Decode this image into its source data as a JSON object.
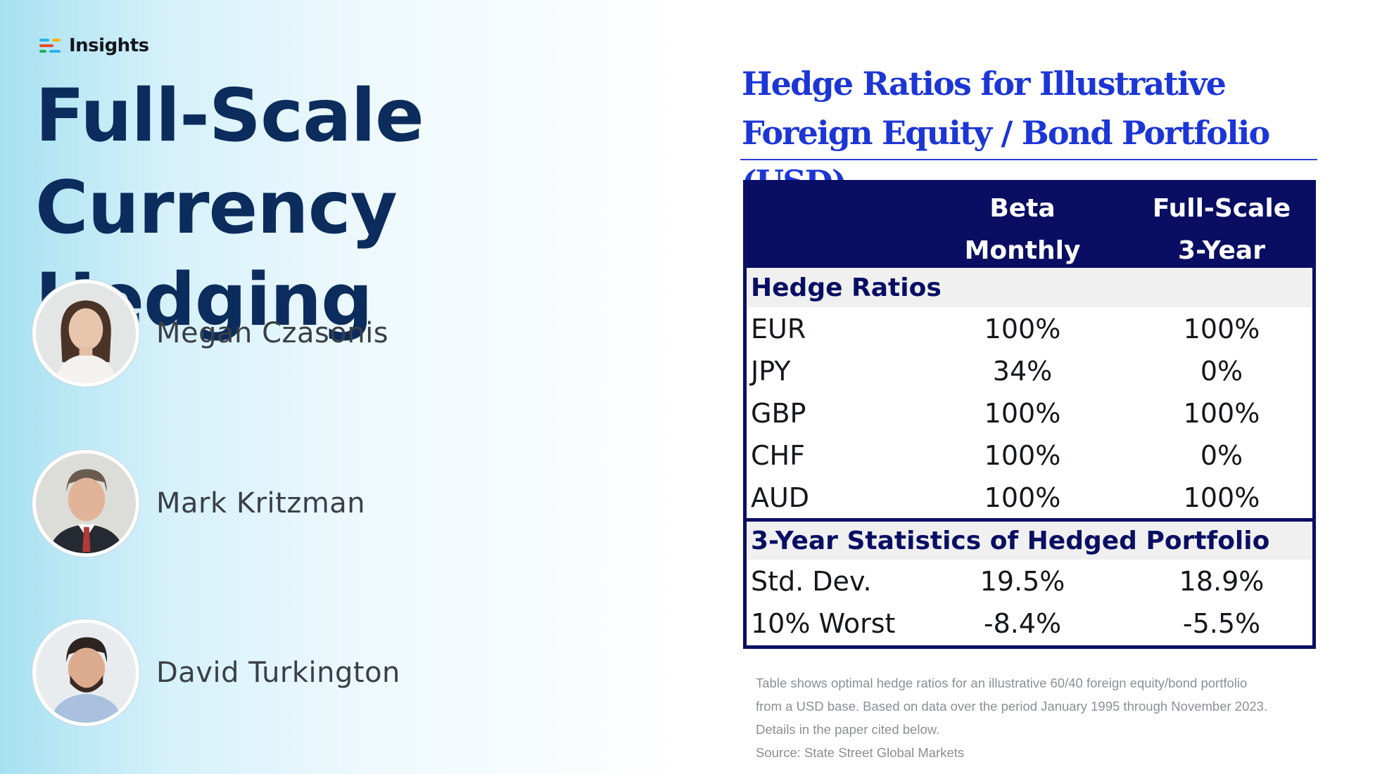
{
  "brand": {
    "name": "Insights"
  },
  "title": {
    "line1": "Full-Scale",
    "line2": "Currency Hedging"
  },
  "authors": [
    {
      "name": "Megan Czasonis"
    },
    {
      "name": "Mark Kritzman"
    },
    {
      "name": "David Turkington"
    }
  ],
  "table": {
    "heading_line1": "Hedge Ratios for Illustrative",
    "heading_line2": "Foreign Equity / Bond Portfolio (USD)",
    "columns": [
      {
        "line1": "Beta",
        "line2": "Monthly"
      },
      {
        "line1": "Full-Scale",
        "line2": "3-Year"
      }
    ],
    "section1": {
      "title": "Hedge Ratios",
      "rows": [
        {
          "label": "EUR",
          "beta": "100%",
          "full": "100%"
        },
        {
          "label": "JPY",
          "beta": "34%",
          "full": "0%"
        },
        {
          "label": "GBP",
          "beta": "100%",
          "full": "100%"
        },
        {
          "label": "CHF",
          "beta": "100%",
          "full": "0%"
        },
        {
          "label": "AUD",
          "beta": "100%",
          "full": "100%"
        }
      ]
    },
    "section2": {
      "title": "3-Year Statistics of Hedged Portfolio",
      "rows": [
        {
          "label": "Std. Dev.",
          "beta": "19.5%",
          "full": "18.9%"
        },
        {
          "label": "10% Worst",
          "beta": "-8.4%",
          "full": "-5.5%"
        }
      ]
    }
  },
  "footnotes": {
    "line1": "Table shows optimal hedge ratios for an illustrative 60/40 foreign equity/bond portfolio",
    "line2": "from a USD base. Based on data over the period January 1995 through November 2023.",
    "line3": "Details in the paper cited below.",
    "source": "Source: State Street Global Markets"
  },
  "colors": {
    "title": "#0b2c5c",
    "heading": "#1c36d6",
    "table_header_bg": "#0a0e63",
    "section_bg": "#f0f0f0",
    "footnote": "#8a8f95"
  }
}
